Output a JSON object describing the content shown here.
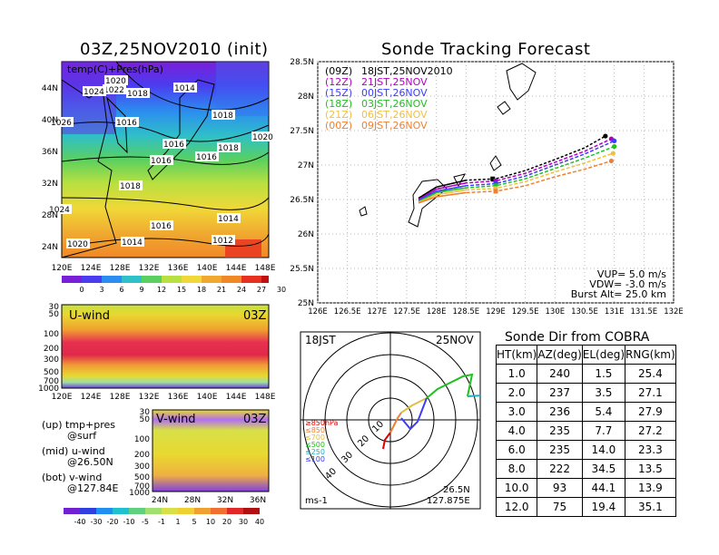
{
  "left_title": "03Z,25NOV2010 (init)",
  "right_title": "Sonde Tracking Forecast",
  "map_panel": {
    "label": "temp(C)+Pres(hPa)",
    "lat_ticks": [
      "44N",
      "40N",
      "36N",
      "32N",
      "28N",
      "24N"
    ],
    "lon_ticks": [
      "120E",
      "124E",
      "128E",
      "132E",
      "136E",
      "140E",
      "144E",
      "148E"
    ],
    "isobar_labels": [
      "1020",
      "1022",
      "1024",
      "1018",
      "1014",
      "1026",
      "1016",
      "1018",
      "1020",
      "1016",
      "1018",
      "1016",
      "1016",
      "1018",
      "1024",
      "1016",
      "1014",
      "1014",
      "1012",
      "1020"
    ],
    "colorbar_ticks": [
      "0",
      "3",
      "6",
      "9",
      "12",
      "15",
      "18",
      "21",
      "24",
      "27",
      "30"
    ]
  },
  "uwind_panel": {
    "label": "U-wind",
    "time": "03Z",
    "p_ticks": [
      "30",
      "50",
      "100",
      "200",
      "300",
      "500",
      "700",
      "1000"
    ],
    "lon_ticks": [
      "120E",
      "124E",
      "128E",
      "132E",
      "136E",
      "140E",
      "144E",
      "148E"
    ]
  },
  "vwind_panel": {
    "label": "V-wind",
    "time": "03Z",
    "p_ticks": [
      "30",
      "50",
      "100",
      "200",
      "300",
      "500",
      "700",
      "1000"
    ],
    "lat_ticks": [
      "24N",
      "28N",
      "32N",
      "36N"
    ],
    "colorbar_ticks": [
      "-40",
      "-30",
      "-20",
      "-10",
      "-5",
      "-1",
      "1",
      "5",
      "10",
      "20",
      "30",
      "40"
    ]
  },
  "legend_notes": [
    "(up) tmp+pres",
    "@surf",
    "(mid) u-wind",
    "@26.50N",
    "(bot) v-wind",
    "@127.84E"
  ],
  "track_chart": {
    "lat_ticks": [
      "28.5N",
      "28N",
      "27.5N",
      "27N",
      "26.5N",
      "26N",
      "25.5N",
      "25N"
    ],
    "lon_ticks": [
      "126E",
      "126.5E",
      "127E",
      "127.5E",
      "128E",
      "128.5E",
      "129E",
      "129.5E",
      "130E",
      "130.5E",
      "131E",
      "131.5E",
      "132E"
    ],
    "legend": [
      {
        "z": "(09Z)",
        "t": "18JST,25NOV2010",
        "color": "#000000"
      },
      {
        "z": "(12Z)",
        "t": "21JST,25NOV",
        "color": "#b000c0"
      },
      {
        "z": "(15Z)",
        "t": "00JST,26NOV",
        "color": "#3c3cff"
      },
      {
        "z": "(18Z)",
        "t": "03JST,26NOV",
        "color": "#20c020"
      },
      {
        "z": "(21Z)",
        "t": "06JST,26NOV",
        "color": "#f0c040"
      },
      {
        "z": "(00Z)",
        "t": "09JST,26NOV",
        "color": "#f08030"
      }
    ],
    "params": [
      "VUP= 5.0 m/s",
      "VDW= -3.0 m/s",
      "Burst Alt= 25.0 km"
    ]
  },
  "polar_panel": {
    "time": "18JST",
    "date": "25NOV",
    "ring_labels": [
      "10",
      "20",
      "30",
      "40"
    ],
    "height_legend": [
      {
        "label": "≥850hPa",
        "color": "#e00000"
      },
      {
        "label": "≤850",
        "color": "#f08030"
      },
      {
        "label": "≤700",
        "color": "#e0c040"
      },
      {
        "label": "≤500",
        "color": "#20c020"
      },
      {
        "label": "≤250",
        "color": "#20b0c0"
      },
      {
        "label": "≤100",
        "color": "#3c3cff"
      }
    ],
    "unit": "ms-1",
    "loc_lat": "26.5N",
    "loc_lon": "127.875E"
  },
  "dir_table": {
    "title": "Sonde Dir from COBRA",
    "headers": [
      "HT(km)",
      "AZ(deg)",
      "EL(deg)",
      "RNG(km)"
    ],
    "rows": [
      [
        "1.0",
        "240",
        "1.5",
        "25.4"
      ],
      [
        "2.0",
        "237",
        "3.5",
        "27.1"
      ],
      [
        "3.0",
        "236",
        "5.4",
        "27.9"
      ],
      [
        "4.0",
        "235",
        "7.7",
        "27.2"
      ],
      [
        "6.0",
        "235",
        "14.0",
        "23.3"
      ],
      [
        "8.0",
        "222",
        "34.5",
        "13.5"
      ],
      [
        "10.0",
        "93",
        "44.1",
        "13.9"
      ],
      [
        "12.0",
        "75",
        "19.4",
        "35.1"
      ]
    ]
  },
  "chart_data": {
    "type": "line",
    "title": "Sonde Tracking Forecast",
    "xlabel": "",
    "ylabel": "",
    "xlim": [
      126,
      132
    ],
    "ylim": [
      25,
      28.5
    ],
    "series": [
      {
        "name": "(09Z) 18JST,25NOV2010",
        "color": "#000000",
        "x": [
          127.7,
          128.0,
          128.5,
          129.0,
          129.5,
          130.0,
          130.5,
          130.85
        ],
        "y": [
          26.52,
          26.68,
          26.78,
          26.8,
          26.92,
          27.08,
          27.25,
          27.42
        ]
      },
      {
        "name": "(12Z) 21JST,25NOV",
        "color": "#b000c0",
        "x": [
          127.7,
          128.0,
          128.5,
          129.0,
          129.5,
          130.0,
          130.5,
          130.95
        ],
        "y": [
          26.5,
          26.65,
          26.74,
          26.77,
          26.88,
          27.04,
          27.2,
          27.38
        ]
      },
      {
        "name": "(15Z) 00JST,26NOV",
        "color": "#3c3cff",
        "x": [
          127.7,
          128.0,
          128.5,
          129.0,
          129.5,
          130.0,
          130.5,
          131.0
        ],
        "y": [
          26.49,
          26.62,
          26.7,
          26.73,
          26.84,
          27.0,
          27.16,
          27.35
        ]
      },
      {
        "name": "(18Z) 03JST,26NOV",
        "color": "#20c020",
        "x": [
          127.7,
          128.0,
          128.5,
          129.0,
          129.5,
          130.0,
          130.5,
          131.0
        ],
        "y": [
          26.47,
          26.6,
          26.67,
          26.7,
          26.8,
          26.95,
          27.1,
          27.27
        ]
      },
      {
        "name": "(21Z) 06JST,26NOV",
        "color": "#f0c040",
        "x": [
          127.7,
          128.0,
          128.5,
          129.0,
          129.5,
          130.0,
          130.5,
          130.98
        ],
        "y": [
          26.46,
          26.57,
          26.64,
          26.66,
          26.76,
          26.9,
          27.03,
          27.17
        ]
      },
      {
        "name": "(00Z) 09JST,26NOV",
        "color": "#f08030",
        "x": [
          127.7,
          128.0,
          128.5,
          129.0,
          129.5,
          130.0,
          130.5,
          130.95
        ],
        "y": [
          26.45,
          26.54,
          26.6,
          26.62,
          26.7,
          26.83,
          26.94,
          27.06
        ]
      }
    ],
    "launch_markers": [
      {
        "x": 128.95,
        "y": 26.8,
        "color": "#000000"
      },
      {
        "x": 129.0,
        "y": 26.77,
        "color": "#b000c0"
      },
      {
        "x": 129.0,
        "y": 26.73,
        "color": "#3c3cff"
      },
      {
        "x": 129.0,
        "y": 26.7,
        "color": "#20c020"
      },
      {
        "x": 129.0,
        "y": 26.66,
        "color": "#f0c040"
      },
      {
        "x": 129.0,
        "y": 26.62,
        "color": "#f08030"
      }
    ]
  }
}
